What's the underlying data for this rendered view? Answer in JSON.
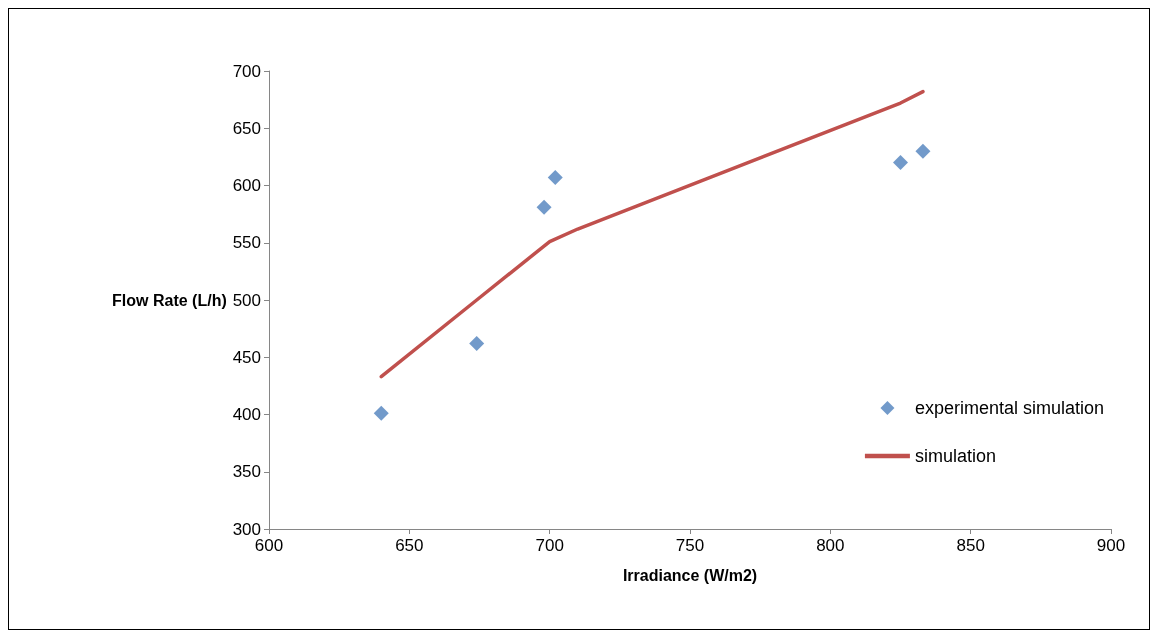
{
  "chart_data": {
    "type": "scatter",
    "xlabel": "Irradiance (W/m2)",
    "ylabel": "Flow Rate (L/h)",
    "xlim": [
      600,
      900
    ],
    "xticks": [
      600,
      650,
      700,
      750,
      800,
      850,
      900
    ],
    "ylim": [
      300,
      700
    ],
    "yticks": [
      300,
      350,
      400,
      450,
      500,
      550,
      600,
      650,
      700
    ],
    "grid": false,
    "legend": "right",
    "series": [
      {
        "name": "experimental simulation",
        "color": "#4f81bd",
        "marker": "diamond",
        "x": [
          640,
          674,
          698,
          702,
          825,
          833
        ],
        "values": [
          401,
          462,
          581,
          607,
          620,
          630
        ]
      },
      {
        "name": "simulation",
        "type": "line",
        "color": "#c0504d",
        "marker": "none",
        "line_style": "solid",
        "x": [
          640,
          674,
          700,
          710,
          825,
          833
        ],
        "values": [
          433,
          500,
          551,
          562,
          672,
          682
        ]
      }
    ]
  }
}
